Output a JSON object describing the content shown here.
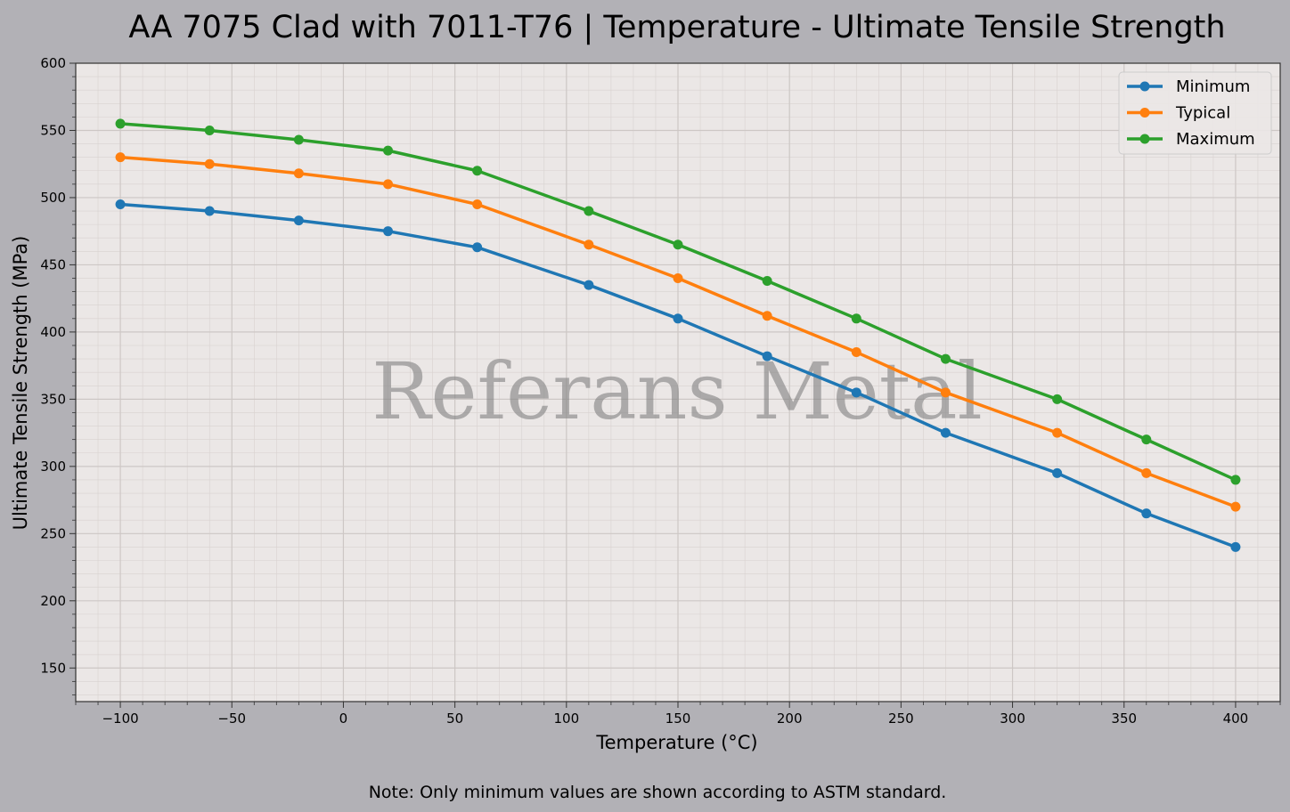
{
  "chart_data": {
    "type": "line",
    "title": "AA 7075 Clad with 7011-T76 | Temperature - Ultimate Tensile Strength",
    "xlabel": "Temperature (°C)",
    "ylabel": "Ultimate Tensile Strength (MPa)",
    "xlim": [
      -120,
      420
    ],
    "ylim": [
      125,
      600
    ],
    "xticks": [
      -100,
      -50,
      0,
      50,
      100,
      150,
      200,
      250,
      300,
      350,
      400
    ],
    "yticks": [
      150,
      200,
      250,
      300,
      350,
      400,
      450,
      500,
      550,
      600
    ],
    "grid": true,
    "legend_position": "top-right",
    "x": [
      -100,
      -60,
      -20,
      20,
      60,
      110,
      150,
      190,
      230,
      270,
      320,
      360,
      400
    ],
    "series": [
      {
        "name": "Minimum",
        "color": "#1f77b4",
        "values": [
          495,
          490,
          483,
          475,
          463,
          435,
          410,
          382,
          355,
          325,
          295,
          265,
          240
        ]
      },
      {
        "name": "Typical",
        "color": "#ff7f0e",
        "values": [
          530,
          525,
          518,
          510,
          495,
          465,
          440,
          412,
          385,
          355,
          325,
          295,
          270
        ]
      },
      {
        "name": "Maximum",
        "color": "#2ca02c",
        "values": [
          555,
          550,
          543,
          535,
          520,
          490,
          465,
          438,
          410,
          380,
          350,
          320,
          290
        ]
      }
    ],
    "watermark": "Referans Metal",
    "note": "Note: Only minimum values are shown according to ASTM standard."
  }
}
